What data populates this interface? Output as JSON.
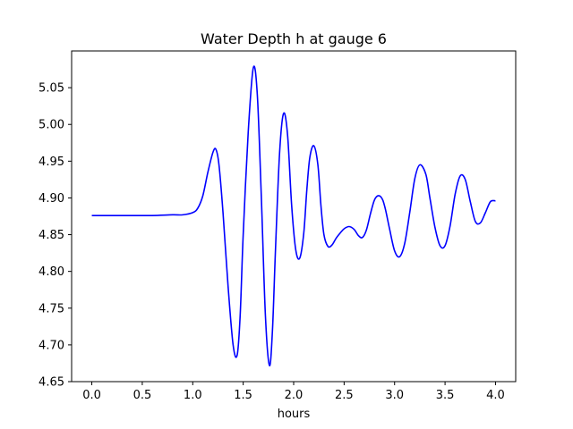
{
  "chart_data": {
    "type": "line",
    "title": "Water Depth h at gauge 6",
    "xlabel": "hours",
    "ylabel": "",
    "xlim": [
      -0.2,
      4.2
    ],
    "ylim": [
      4.65,
      5.1
    ],
    "xticks": [
      0.0,
      0.5,
      1.0,
      1.5,
      2.0,
      2.5,
      3.0,
      3.5,
      4.0
    ],
    "xtick_labels": [
      "0.0",
      "0.5",
      "1.0",
      "1.5",
      "2.0",
      "2.5",
      "3.0",
      "3.5",
      "4.0"
    ],
    "yticks": [
      4.65,
      4.7,
      4.75,
      4.8,
      4.85,
      4.9,
      4.95,
      5.0,
      5.05
    ],
    "ytick_labels": [
      "4.65",
      "4.70",
      "4.75",
      "4.80",
      "4.85",
      "4.90",
      "4.95",
      "5.00",
      "5.05"
    ],
    "grid": false,
    "series": [
      {
        "color": "#0000ff",
        "x": [
          0.0,
          0.2,
          0.4,
          0.6,
          0.8,
          0.9,
          1.0,
          1.05,
          1.1,
          1.15,
          1.2,
          1.23,
          1.26,
          1.3,
          1.35,
          1.4,
          1.44,
          1.47,
          1.5,
          1.55,
          1.6,
          1.64,
          1.68,
          1.72,
          1.76,
          1.79,
          1.82,
          1.86,
          1.9,
          1.94,
          1.98,
          2.02,
          2.06,
          2.1,
          2.13,
          2.16,
          2.2,
          2.24,
          2.27,
          2.3,
          2.34,
          2.38,
          2.42,
          2.46,
          2.5,
          2.55,
          2.6,
          2.64,
          2.68,
          2.72,
          2.76,
          2.8,
          2.84,
          2.88,
          2.91,
          2.95,
          3.0,
          3.05,
          3.1,
          3.15,
          3.2,
          3.25,
          3.31,
          3.35,
          3.4,
          3.45,
          3.5,
          3.55,
          3.6,
          3.65,
          3.7,
          3.75,
          3.8,
          3.85,
          3.9,
          3.95,
          4.0
        ],
        "y": [
          4.876,
          4.876,
          4.876,
          4.876,
          4.877,
          4.877,
          4.88,
          4.886,
          4.903,
          4.935,
          4.962,
          4.966,
          4.945,
          4.88,
          4.78,
          4.7,
          4.686,
          4.74,
          4.85,
          4.99,
          5.077,
          5.04,
          4.9,
          4.74,
          4.672,
          4.72,
          4.83,
          4.96,
          5.015,
          4.985,
          4.89,
          4.83,
          4.818,
          4.852,
          4.91,
          4.955,
          4.971,
          4.945,
          4.89,
          4.85,
          4.834,
          4.836,
          4.845,
          4.852,
          4.858,
          4.861,
          4.857,
          4.849,
          4.846,
          4.856,
          4.878,
          4.897,
          4.903,
          4.898,
          4.884,
          4.858,
          4.828,
          4.82,
          4.838,
          4.88,
          4.926,
          4.945,
          4.932,
          4.9,
          4.86,
          4.835,
          4.835,
          4.862,
          4.905,
          4.93,
          4.925,
          4.895,
          4.868,
          4.866,
          4.88,
          4.895,
          4.896
        ]
      }
    ]
  }
}
